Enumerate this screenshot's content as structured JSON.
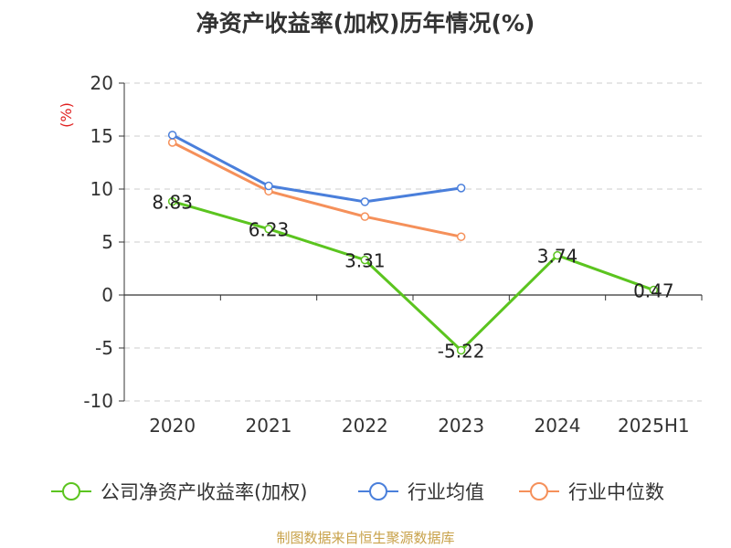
{
  "chart_data": {
    "type": "line",
    "title": "净资产收益率(加权)历年情况(%)",
    "ylabel": "(%)",
    "categories": [
      "2020",
      "2021",
      "2022",
      "2023",
      "2024",
      "2025H1"
    ],
    "ylim": [
      -10,
      20
    ],
    "yticks": [
      20,
      15,
      10,
      5,
      0,
      -5,
      -10
    ],
    "grid": true,
    "legend_position": "bottom",
    "series": [
      {
        "name": "公司净资产收益率(加权)",
        "color": "#5bc41f",
        "values": [
          8.83,
          6.23,
          3.31,
          -5.22,
          3.74,
          0.47
        ],
        "labels": [
          "8.83",
          "6.23",
          "3.31",
          "-5.22",
          "3.74",
          "0.47"
        ]
      },
      {
        "name": "行业均值",
        "color": "#4a7fdb",
        "values": [
          15.1,
          10.3,
          8.8,
          10.1,
          null,
          null
        ]
      },
      {
        "name": "行业中位数",
        "color": "#f5905a",
        "values": [
          14.4,
          9.8,
          7.4,
          5.5,
          null,
          null
        ]
      }
    ]
  },
  "source": "制图数据来自恒生聚源数据库"
}
